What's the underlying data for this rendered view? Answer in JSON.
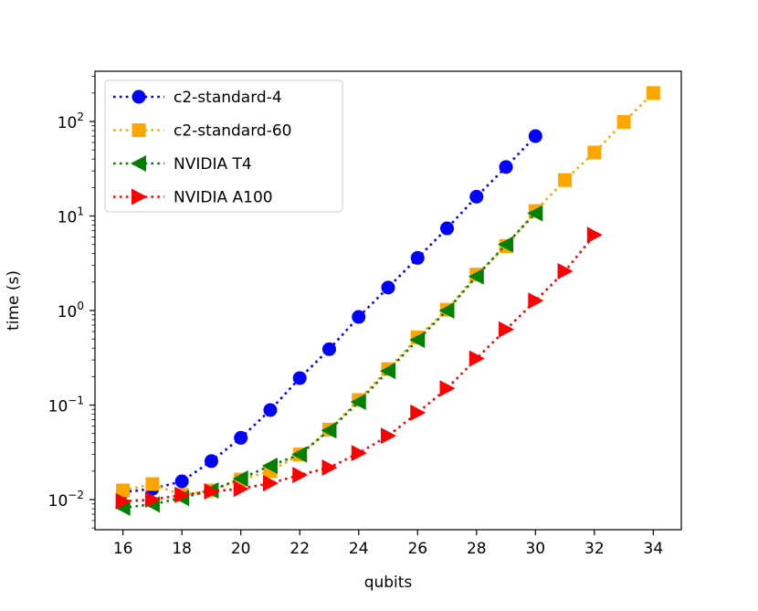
{
  "chart_data": {
    "type": "line",
    "title": "",
    "xlabel": "qubits",
    "ylabel": "time (s)",
    "xscale": "linear",
    "yscale": "log",
    "xlim": [
      15.05,
      34.95
    ],
    "ylim": [
      0.0048,
      340
    ],
    "xticks": [
      16,
      18,
      20,
      22,
      24,
      26,
      28,
      30,
      32,
      34
    ],
    "yticks": [
      {
        "value": 0.01,
        "base": "10",
        "exp": "−2"
      },
      {
        "value": 0.1,
        "base": "10",
        "exp": "−1"
      },
      {
        "value": 1,
        "base": "10",
        "exp": "0"
      },
      {
        "value": 10,
        "base": "10",
        "exp": "1"
      },
      {
        "value": 100,
        "base": "10",
        "exp": "2"
      }
    ],
    "grid": false,
    "legend_position": "top-left",
    "series": [
      {
        "name": "c2-standard-4",
        "color": "#0000ff",
        "marker": "circle",
        "linestyle": "dotted",
        "x": [
          16,
          17,
          18,
          19,
          20,
          21,
          22,
          23,
          24,
          25,
          26,
          27,
          28,
          29,
          30
        ],
        "y": [
          0.012,
          0.013,
          0.0156,
          0.0255,
          0.045,
          0.0885,
          0.193,
          0.39,
          0.855,
          1.75,
          3.6,
          7.4,
          16,
          33,
          70
        ]
      },
      {
        "name": "c2-standard-60",
        "color": "#ffa500",
        "marker": "square",
        "linestyle": "dotted",
        "x": [
          16,
          17,
          18,
          19,
          20,
          21,
          22,
          23,
          24,
          25,
          26,
          27,
          28,
          29,
          30,
          31,
          32,
          33,
          34
        ],
        "y": [
          0.0125,
          0.0146,
          0.0112,
          0.0125,
          0.0163,
          0.02,
          0.03,
          0.055,
          0.113,
          0.24,
          0.52,
          1.02,
          2.4,
          4.8,
          11.3,
          24,
          47,
          99,
          200
        ]
      },
      {
        "name": "NVIDIA T4",
        "color": "#008000",
        "marker": "triangle-left",
        "linestyle": "dotted",
        "x": [
          16,
          17,
          18,
          19,
          20,
          21,
          22,
          23,
          24,
          25,
          26,
          27,
          28,
          29,
          30
        ],
        "y": [
          0.0082,
          0.0089,
          0.0104,
          0.0125,
          0.0167,
          0.0228,
          0.03,
          0.054,
          0.108,
          0.23,
          0.49,
          1.0,
          2.3,
          5.0,
          10.7
        ]
      },
      {
        "name": "NVIDIA A100",
        "color": "#ff0000",
        "marker": "triangle-right",
        "linestyle": "dotted",
        "x": [
          16,
          17,
          18,
          19,
          20,
          21,
          22,
          23,
          24,
          25,
          26,
          27,
          28,
          29,
          30,
          31,
          32
        ],
        "y": [
          0.0096,
          0.01,
          0.0112,
          0.0122,
          0.013,
          0.0149,
          0.0182,
          0.0218,
          0.031,
          0.0473,
          0.083,
          0.15,
          0.31,
          0.63,
          1.27,
          2.6,
          6.3
        ]
      }
    ]
  }
}
